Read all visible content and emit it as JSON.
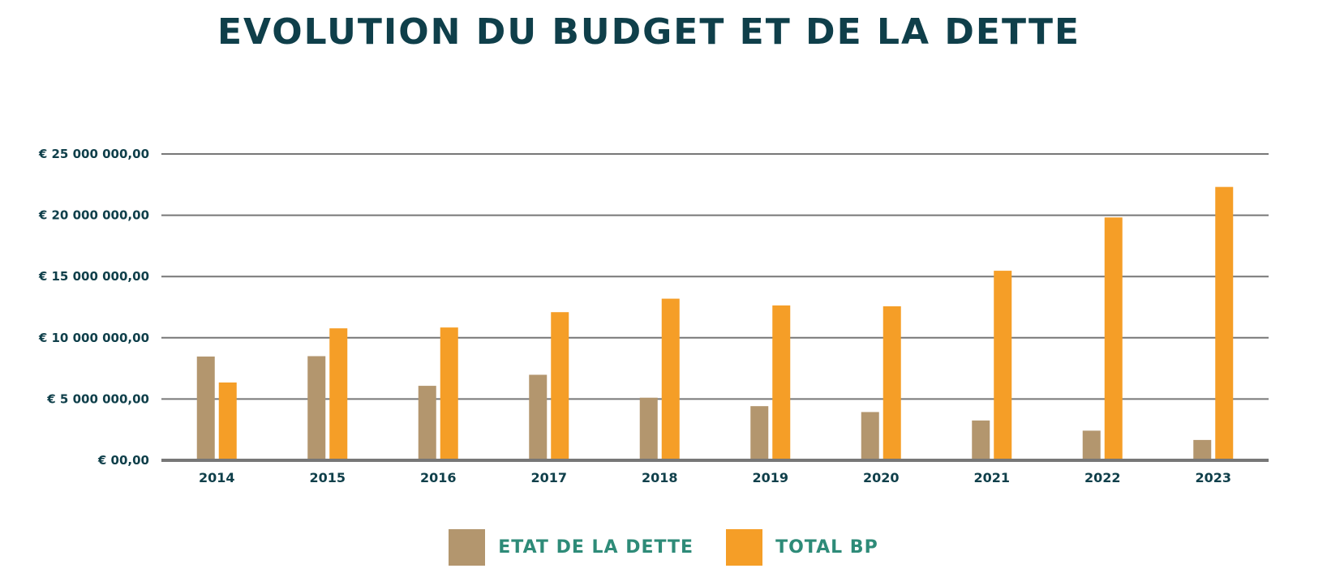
{
  "chart_data": {
    "type": "bar",
    "title": "EVOLUTION DU BUDGET ET DE LA DETTE",
    "xlabel": "",
    "ylabel": "",
    "categories": [
      "2014",
      "2015",
      "2016",
      "2017",
      "2018",
      "2019",
      "2020",
      "2021",
      "2022",
      "2023"
    ],
    "series": [
      {
        "name": "ETAT DE LA DETTE",
        "color": "#b3966e",
        "values": [
          8470000,
          8500000,
          6080000,
          6980000,
          5110000,
          4420000,
          3940000,
          3250000,
          2420000,
          1660000
        ]
      },
      {
        "name": "TOTAL BP",
        "color": "#f59e27",
        "values": [
          6350000,
          10770000,
          10840000,
          12090000,
          13190000,
          12640000,
          12570000,
          15470000,
          19820000,
          22310000
        ]
      }
    ],
    "ylim": [
      0,
      25000000
    ],
    "yticks": [
      0,
      5000000,
      10000000,
      15000000,
      20000000,
      25000000
    ],
    "ytick_labels": [
      "€ 00,00",
      "€ 5 000 000,00",
      "€ 10 000 000,00",
      "€ 15 000 000,00",
      "€ 20 000 000,00",
      "€ 25 000 000,00"
    ],
    "grid": true,
    "legend_position": "bottom"
  }
}
